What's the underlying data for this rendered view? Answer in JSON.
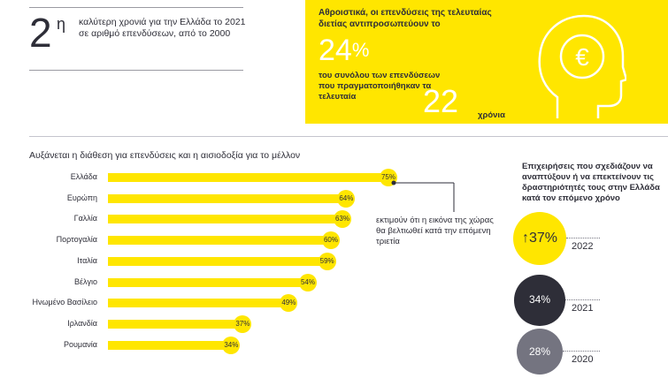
{
  "top_stat": {
    "value": "2",
    "superscript": "η",
    "text": "καλύτερη χρονιά για την Ελλάδα το 2021 σε αριθμό επενδύσεων, από το 2000"
  },
  "highlight": {
    "heading": "Αθροιστικά, οι επενδύσεις της τελευταίας διετίας αντιπροσωπεύουν το",
    "percent": "24",
    "percent_sign": "%",
    "subtext": "του συνόλου των επενδύσεων που πραγματοποιήθηκαν τα τελευταία",
    "years_value": "22",
    "years_label": "χρόνια",
    "icon": "head-euro-icon",
    "color": "#ffe600"
  },
  "section_title": "Αυξάνεται η διάθεση για επενδύσεις και η αισιοδοξία για το μέλλον",
  "note": "εκτιμούν ότι η εικόνα της χώρας θα βελτιωθεί κατά την επόμενη τριετία",
  "chart_data": [
    {
      "type": "bar",
      "orientation": "horizontal",
      "categories": [
        "Ελλάδα",
        "Ευρώπη",
        "Γαλλία",
        "Πορτογαλία",
        "Ιταλία",
        "Βέλγιο",
        "Ηνωμένο Βασίλειο",
        "Ιρλανδία",
        "Ρουμανία"
      ],
      "values": [
        75,
        64,
        63,
        60,
        59,
        54,
        49,
        37,
        34
      ],
      "value_labels": [
        "75%",
        "64%",
        "63%",
        "60%",
        "59%",
        "54%",
        "49%",
        "37%",
        "34%"
      ],
      "xlim": [
        0,
        75
      ],
      "color": "#ffe600"
    },
    {
      "type": "bubble",
      "title": "Επιχειρήσεις που σχεδιάζουν να αναπτύξουν ή να επεκτείνουν τις δραστηριότητές τους στην Ελλάδα κατά τον επόμενο χρόνο",
      "categories": [
        "2022",
        "2021",
        "2020"
      ],
      "values": [
        37,
        34,
        28
      ],
      "value_labels": [
        "↑37%",
        "34%",
        "28%"
      ],
      "colors": [
        "#ffe600",
        "#2e2e38",
        "#747480"
      ]
    }
  ]
}
